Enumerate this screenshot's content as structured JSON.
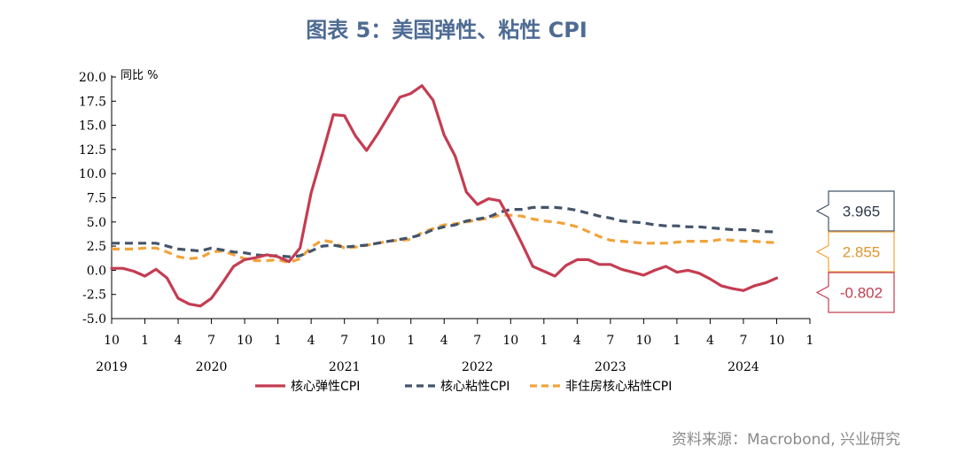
{
  "header": {
    "title": "图表 5：美国弹性、粘性 CPI"
  },
  "footer": {
    "source": "资料来源：Macrobond, 兴业研究"
  },
  "chart_data": {
    "type": "line",
    "title": "图表 5：美国弹性、粘性 CPI",
    "ylabel": "同比 %",
    "ylim": [
      -5,
      20
    ],
    "yticks": [
      "20.0",
      "17.5",
      "15.0",
      "12.5",
      "10.0",
      "7.5",
      "5.0",
      "2.5",
      "0.0",
      "-2.5",
      "-5.0"
    ],
    "ytick_values": [
      20,
      17.5,
      15,
      12.5,
      10,
      7.5,
      5,
      2.5,
      0,
      -2.5,
      -5
    ],
    "xticks": [
      {
        "label": "10",
        "index": 0
      },
      {
        "label": "1",
        "index": 3
      },
      {
        "label": "4",
        "index": 6
      },
      {
        "label": "7",
        "index": 9
      },
      {
        "label": "10",
        "index": 12
      },
      {
        "label": "1",
        "index": 15
      },
      {
        "label": "4",
        "index": 18
      },
      {
        "label": "7",
        "index": 21
      },
      {
        "label": "10",
        "index": 24
      },
      {
        "label": "1",
        "index": 27
      },
      {
        "label": "4",
        "index": 30
      },
      {
        "label": "7",
        "index": 33
      },
      {
        "label": "10",
        "index": 36
      },
      {
        "label": "1",
        "index": 39
      },
      {
        "label": "4",
        "index": 42
      },
      {
        "label": "7",
        "index": 45
      },
      {
        "label": "10",
        "index": 48
      },
      {
        "label": "1",
        "index": 51
      },
      {
        "label": "4",
        "index": 54
      },
      {
        "label": "7",
        "index": 57
      },
      {
        "label": "10",
        "index": 60
      },
      {
        "label": "1",
        "index": 63
      }
    ],
    "years": [
      {
        "label": "2019",
        "index": 0
      },
      {
        "label": "2020",
        "index": 9
      },
      {
        "label": "2021",
        "index": 21
      },
      {
        "label": "2022",
        "index": 33
      },
      {
        "label": "2023",
        "index": 45
      },
      {
        "label": "2024",
        "index": 57
      }
    ],
    "x_count": 64,
    "series": [
      {
        "name": "核心弹性CPI",
        "color": "#c43d52",
        "style": "solid",
        "values": [
          0.2,
          0.2,
          -0.1,
          -0.6,
          0.1,
          -0.8,
          -2.9,
          -3.5,
          -3.7,
          -2.9,
          -1.3,
          0.4,
          1.1,
          1.3,
          1.6,
          1.4,
          0.9,
          2.3,
          8.0,
          12.0,
          16.1,
          16.0,
          13.9,
          12.4,
          14.1,
          16.0,
          17.9,
          18.3,
          19.1,
          17.6,
          14.0,
          11.8,
          8.1,
          6.8,
          7.4,
          7.2,
          5.1,
          2.8,
          0.4,
          -0.1,
          -0.6,
          0.5,
          1.1,
          1.1,
          0.6,
          0.6,
          0.1,
          -0.2,
          -0.5,
          0.0,
          0.4,
          -0.2,
          0.0,
          -0.3,
          -0.9,
          -1.6,
          -1.9,
          -2.1,
          -1.6,
          -1.3,
          -0.802
        ],
        "end_label": "-0.802"
      },
      {
        "name": "核心粘性CPI",
        "color": "#44546a",
        "style": "dashed",
        "values": [
          2.8,
          2.8,
          2.8,
          2.8,
          2.8,
          2.5,
          2.2,
          2.1,
          2.0,
          2.3,
          2.1,
          1.9,
          1.8,
          1.6,
          1.5,
          1.5,
          1.4,
          1.5,
          2.0,
          2.5,
          2.6,
          2.4,
          2.5,
          2.6,
          2.8,
          3.0,
          3.2,
          3.4,
          3.7,
          4.2,
          4.5,
          4.7,
          5.1,
          5.3,
          5.5,
          6.0,
          6.3,
          6.3,
          6.5,
          6.5,
          6.5,
          6.4,
          6.2,
          5.9,
          5.6,
          5.4,
          5.1,
          5.0,
          4.9,
          4.7,
          4.6,
          4.6,
          4.5,
          4.5,
          4.4,
          4.3,
          4.2,
          4.2,
          4.1,
          4.0,
          3.965
        ],
        "end_label": "3.965"
      },
      {
        "name": "非住房核心粘性CPI",
        "color": "#f2a33a",
        "style": "dashed",
        "values": [
          2.2,
          2.2,
          2.2,
          2.3,
          2.3,
          1.9,
          1.4,
          1.2,
          1.3,
          1.9,
          2.0,
          1.6,
          1.2,
          1.0,
          1.0,
          1.1,
          0.8,
          1.2,
          2.4,
          3.1,
          2.9,
          2.3,
          2.4,
          2.6,
          2.8,
          3.0,
          3.1,
          3.2,
          3.9,
          4.3,
          4.7,
          4.8,
          5.0,
          5.2,
          5.4,
          5.7,
          5.7,
          5.6,
          5.3,
          5.1,
          5.0,
          4.8,
          4.5,
          4.0,
          3.5,
          3.1,
          3.0,
          2.9,
          2.8,
          2.8,
          2.8,
          2.9,
          3.0,
          3.0,
          3.0,
          3.2,
          3.1,
          3.0,
          3.0,
          2.9,
          2.855
        ],
        "end_label": "2.855"
      }
    ],
    "legend": [
      "核心弹性CPI",
      "核心粘性CPI",
      "非住房核心粘性CPI"
    ],
    "legend_position": "bottom",
    "grid": false
  }
}
